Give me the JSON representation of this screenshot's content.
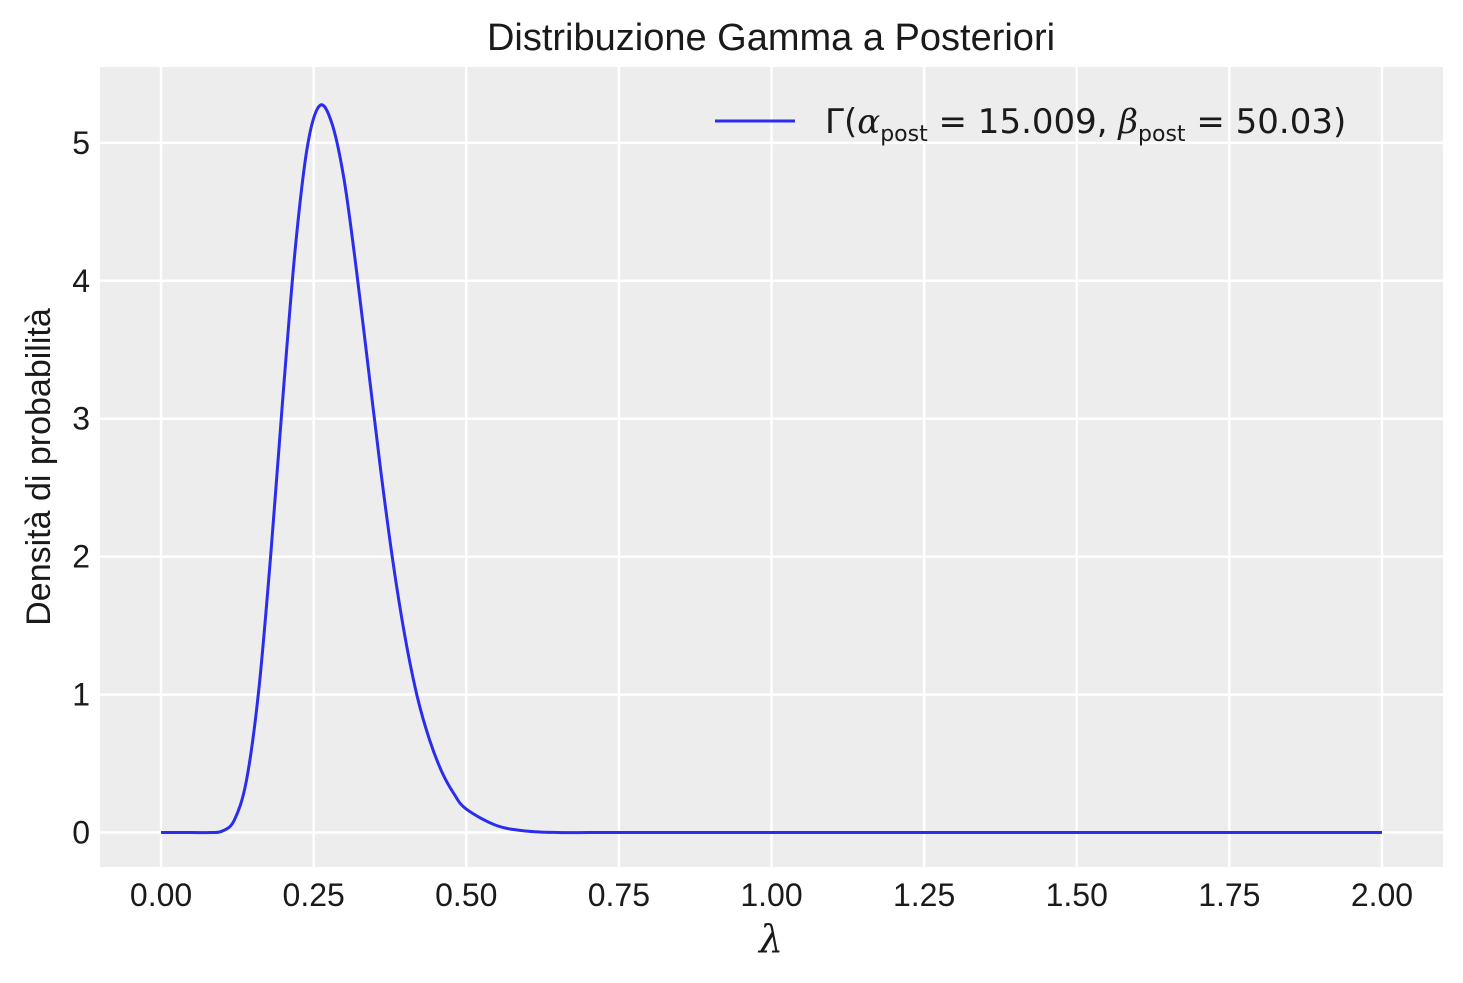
{
  "chart_data": {
    "type": "line",
    "title": "Distribuzione Gamma a Posteriori",
    "xlabel": "λ",
    "ylabel": "Densità di probabilità",
    "xlim": [
      -0.1,
      2.1
    ],
    "ylim": [
      -0.25,
      5.55
    ],
    "xticks": [
      0.0,
      0.25,
      0.5,
      0.75,
      1.0,
      1.25,
      1.5,
      1.75,
      2.0
    ],
    "xtick_labels": [
      "0.00",
      "0.25",
      "0.50",
      "0.75",
      "1.00",
      "1.25",
      "1.50",
      "1.75",
      "2.00"
    ],
    "yticks": [
      0,
      1,
      2,
      3,
      4,
      5
    ],
    "ytick_labels": [
      "0",
      "1",
      "2",
      "3",
      "4",
      "5"
    ],
    "grid": true,
    "legend_position": "top-right",
    "background_color": "#ededed",
    "series": [
      {
        "name": "Γ(α_post = 15.009, β_post = 50.03)",
        "legend": {
          "gamma": "Γ(",
          "alpha": "α",
          "alpha_sub": "post",
          "alpha_val": " = 15.009, ",
          "beta": "β",
          "beta_sub": "post",
          "beta_val": " = 50.03)"
        },
        "color": "#2a2eec",
        "x": [
          0.0,
          0.05,
          0.08,
          0.1,
          0.12,
          0.14,
          0.16,
          0.18,
          0.2,
          0.22,
          0.24,
          0.26,
          0.28,
          0.3,
          0.32,
          0.34,
          0.36,
          0.38,
          0.4,
          0.42,
          0.44,
          0.46,
          0.48,
          0.5,
          0.55,
          0.6,
          0.65,
          0.7,
          0.75,
          0.8,
          1.0,
          1.25,
          1.5,
          1.75,
          2.0
        ],
        "y": [
          0.0,
          0.0,
          0.0,
          0.01,
          0.09,
          0.38,
          1.03,
          2.03,
          3.18,
          4.24,
          4.98,
          5.27,
          5.14,
          4.73,
          4.08,
          3.35,
          2.62,
          1.96,
          1.41,
          0.98,
          0.67,
          0.44,
          0.28,
          0.17,
          0.05,
          0.01,
          0.0,
          0.0,
          0.0,
          0.0,
          0.0,
          0.0,
          0.0,
          0.0,
          0.0
        ]
      }
    ]
  }
}
